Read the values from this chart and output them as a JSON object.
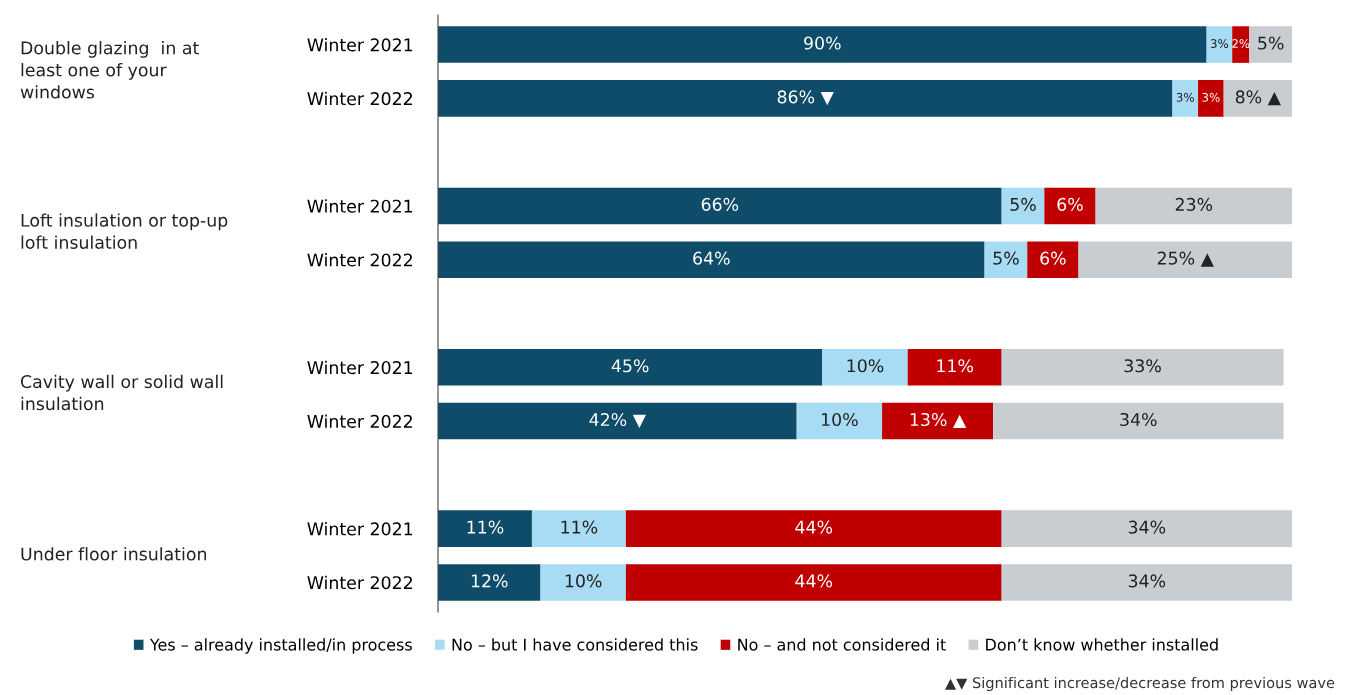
{
  "chart_data": {
    "type": "bar",
    "orientation": "horizontal",
    "stacked": true,
    "categories": [
      "Winter 2021",
      "Winter 2022",
      "Winter 2021",
      "Winter 2022",
      "Winter 2021",
      "Winter 2022",
      "Winter 2021",
      "Winter 2022"
    ],
    "series": [
      {
        "name": "Yes – already installed/in process",
        "color": "#0f4c6a",
        "values": [
          90,
          86,
          66,
          64,
          45,
          42,
          11,
          12
        ],
        "value_labels": [
          "90%",
          "86% ▼",
          "66%",
          "64%",
          "45%",
          "42% ▼",
          "11%",
          "12%"
        ]
      },
      {
        "name": "No – but I have considered this",
        "color": "#a8dcf4",
        "values": [
          3,
          3,
          5,
          5,
          10,
          10,
          11,
          10
        ],
        "value_labels": [
          "3%",
          "3%",
          "5%",
          "5%",
          "10%",
          "10%",
          "11%",
          "10%"
        ]
      },
      {
        "name": "No – and not considered it",
        "color": "#c00000",
        "values": [
          2,
          3,
          6,
          6,
          11,
          13,
          44,
          44
        ],
        "value_labels": [
          "2%",
          "3%",
          "6%",
          "6%",
          "11%",
          "13% ▲",
          "44%",
          "44%"
        ]
      },
      {
        "name": "Don’t know whether installed",
        "color": "#c8cdd2",
        "values": [
          5,
          8,
          23,
          25,
          33,
          34,
          34,
          34
        ],
        "value_labels": [
          "5%",
          "8% ▲",
          "23%",
          "25% ▲",
          "33%",
          "34%",
          "34%",
          "34%"
        ]
      }
    ],
    "xlim": [
      0,
      100
    ],
    "tick_labels": "y",
    "legend": "bottom",
    "grid": false,
    "annotations": [
      "Double glazing  in at\nleast one of your\nwindows",
      "Loft insulation or top-up\nloft insulation",
      "Cavity wall or solid wall\ninsulation",
      "Under floor insulation",
      "▲▼ Significant increase/decrease from previous wave"
    ]
  }
}
